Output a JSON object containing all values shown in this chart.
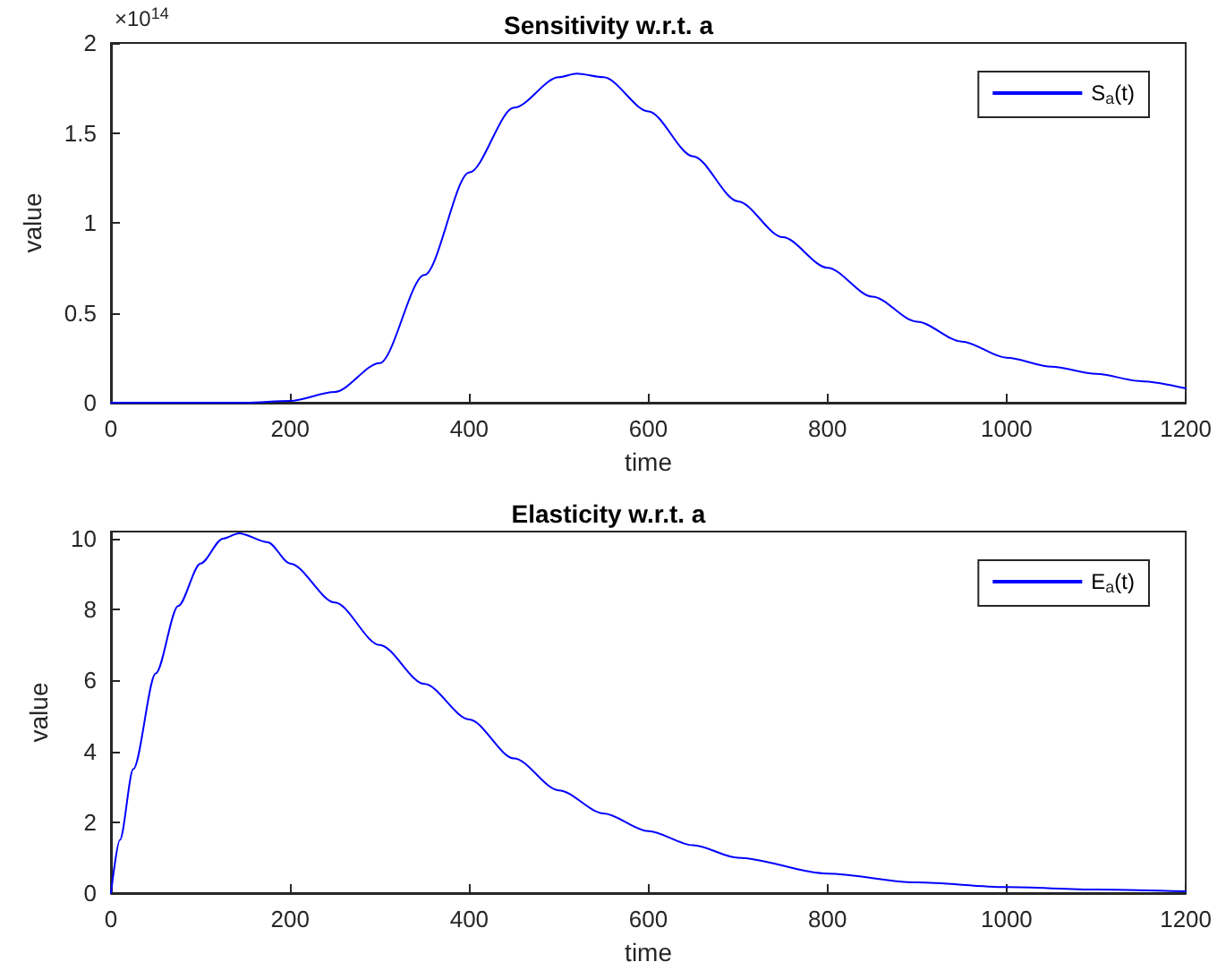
{
  "chart_data": [
    {
      "type": "line",
      "title": "Sensitivity w.r.t. a",
      "xlabel": "time",
      "ylabel": "value",
      "annotations": [
        "×10$^{14}$"
      ],
      "x": [
        0,
        100,
        150,
        200,
        250,
        300,
        350,
        400,
        450,
        500,
        520,
        550,
        600,
        650,
        700,
        750,
        800,
        850,
        900,
        950,
        1000,
        1050,
        1100,
        1150,
        1200
      ],
      "series": [
        {
          "name": "S$_{a}$(t)",
          "color": "#0000ff",
          "values": [
            0,
            0,
            0,
            0.01,
            0.06,
            0.22,
            0.71,
            1.28,
            1.64,
            1.81,
            1.83,
            1.81,
            1.62,
            1.37,
            1.12,
            0.92,
            0.75,
            0.59,
            0.45,
            0.34,
            0.25,
            0.2,
            0.16,
            0.12,
            0.08
          ]
        }
      ],
      "xlim": [
        0,
        1200
      ],
      "xticks": [
        0,
        200,
        400,
        600,
        800,
        1000,
        1200
      ],
      "ylim": [
        0,
        2
      ],
      "yticks": [
        0,
        0.5,
        1,
        1.5,
        2
      ],
      "grid": false,
      "legend": "top right",
      "marker": "none",
      "line_style": "solid"
    },
    {
      "type": "line",
      "title": "Elasticity w.r.t. a",
      "xlabel": "time",
      "ylabel": "value",
      "x": [
        0,
        10,
        25,
        50,
        75,
        100,
        125,
        143,
        175,
        200,
        250,
        300,
        350,
        400,
        450,
        500,
        550,
        600,
        650,
        700,
        800,
        900,
        1000,
        1100,
        1200
      ],
      "series": [
        {
          "name": "E$_{a}$(t)",
          "color": "#0000ff",
          "values": [
            0,
            1.5,
            3.5,
            6.2,
            8.1,
            9.3,
            10,
            10.15,
            9.9,
            9.3,
            8.2,
            7,
            5.9,
            4.9,
            3.8,
            2.9,
            2.25,
            1.75,
            1.35,
            1,
            0.55,
            0.3,
            0.17,
            0.1,
            0.05
          ]
        }
      ],
      "xlim": [
        0,
        1200
      ],
      "xticks": [
        0,
        200,
        400,
        600,
        800,
        1000,
        1200
      ],
      "ylim": [
        0,
        10.2
      ],
      "yticks": [
        0,
        2,
        4,
        6,
        8,
        10
      ],
      "grid": false,
      "legend": "top right",
      "marker": "none",
      "line_style": "solid"
    }
  ]
}
